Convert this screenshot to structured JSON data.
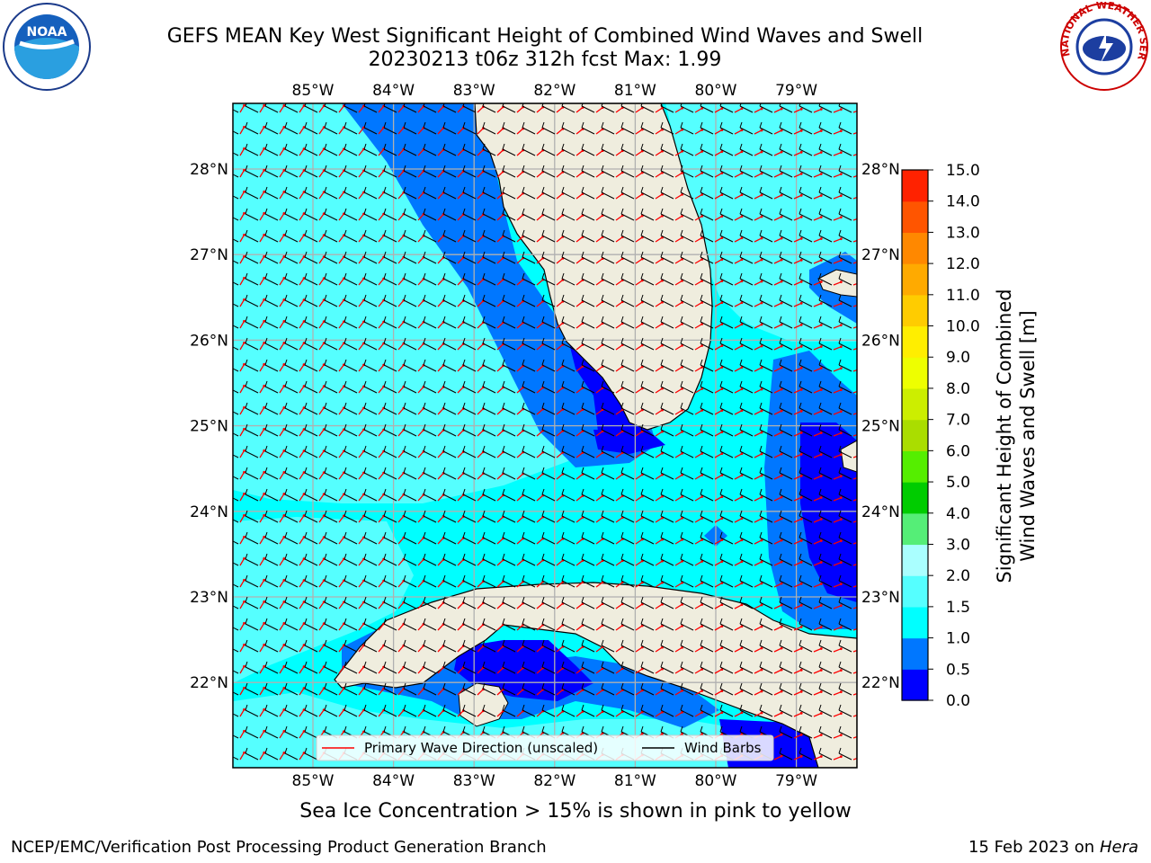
{
  "title_line1": "GEFS MEAN Key West Significant Height of Combined Wind Waves and Swell",
  "title_line2": "20230213 t06z 312h fcst   Max: 1.99",
  "logos": {
    "left": "noaa-logo",
    "right": "nws-logo",
    "right_text": "NATIONAL WEATHER SERVICE"
  },
  "map": {
    "lon_labels": [
      "85°W",
      "84°W",
      "83°W",
      "82°W",
      "81°W",
      "80°W",
      "79°W"
    ],
    "lat_labels": [
      "28°N",
      "27°N",
      "26°N",
      "25°N",
      "24°N",
      "23°N",
      "22°N"
    ],
    "legend": {
      "primary_wave": "Primary Wave Direction (unscaled)",
      "wind_barbs": "Wind Barbs"
    },
    "colors": {
      "land": "#efedde",
      "wave_arrow": "#ff0000",
      "barb": "#000000",
      "grid": "#b0b0b0"
    }
  },
  "colorbar": {
    "title_line1": "Significant Height of Combined",
    "title_line2": "Wind Waves and Swell [m]",
    "ticks": [
      "0.0",
      "0.5",
      "1.0",
      "1.5",
      "2.0",
      "3.0",
      "4.0",
      "5.0",
      "6.0",
      "7.0",
      "8.0",
      "9.0",
      "10.0",
      "11.0",
      "12.0",
      "13.0",
      "14.0",
      "15.0"
    ],
    "colors": [
      "#0000ff",
      "#0077ff",
      "#00ffff",
      "#55ffff",
      "#aaffff",
      "#55ee77",
      "#00cc00",
      "#55ee00",
      "#aadd00",
      "#ccee00",
      "#eeff00",
      "#ffee00",
      "#ffcc00",
      "#ffaa00",
      "#ff8800",
      "#ff5500",
      "#ff2200"
    ]
  },
  "ice_note": "Sea Ice Concentration > 15% is shown in pink to yellow",
  "credit_left": "NCEP/EMC/Verification Post Processing Product Generation Branch",
  "credit_right_date": "15 Feb 2023 on",
  "credit_right_host": "Hera"
}
